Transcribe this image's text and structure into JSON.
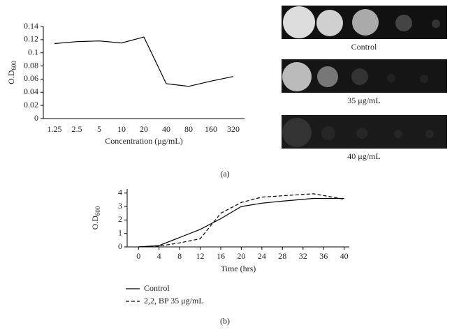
{
  "chart_data": [
    {
      "type": "line",
      "ylabel": {
        "text": "O.D",
        "subscript": "600"
      },
      "xlabel": "Concentration (μg/mL)",
      "categories": [
        "1.25",
        "2.5",
        "5",
        "10",
        "20",
        "40",
        "80",
        "160",
        "320"
      ],
      "values": [
        0.114,
        0.117,
        0.118,
        0.115,
        0.124,
        0.053,
        0.049,
        0.057,
        0.064
      ],
      "color": "#000000",
      "ylim": [
        0,
        0.14
      ],
      "yticks": [
        0,
        0.02,
        0.04,
        0.06,
        0.08,
        0.1,
        0.12,
        0.14
      ]
    },
    {
      "type": "line",
      "ylabel": {
        "text": "O.D",
        "subscript": "600"
      },
      "xlabel": "Time (hrs)",
      "x": [
        0,
        4,
        8,
        12,
        16,
        20,
        24,
        28,
        34,
        40
      ],
      "series": [
        {
          "name": "Control",
          "color": "#000000",
          "dashed": false,
          "values": [
            0,
            0.1,
            0.7,
            1.3,
            2.1,
            3.0,
            3.25,
            3.4,
            3.6,
            3.6
          ]
        },
        {
          "name": "2,2, BP 35 μg/mL",
          "color": "#000000",
          "dashed": true,
          "values": [
            0,
            0.05,
            0.3,
            0.6,
            2.5,
            3.3,
            3.7,
            3.8,
            3.95,
            3.55
          ]
        }
      ],
      "xlim": [
        -2.2,
        41
      ],
      "xticks": [
        0,
        4,
        8,
        12,
        16,
        20,
        24,
        28,
        32,
        36,
        40
      ],
      "ylim": [
        0,
        4.3
      ],
      "yticks": [
        0,
        1,
        2,
        3,
        4
      ]
    }
  ],
  "images": [
    "Control",
    "35 μg/mL",
    "40 μg/mL"
  ],
  "panel_labels": [
    "(a)",
    "(b)"
  ]
}
